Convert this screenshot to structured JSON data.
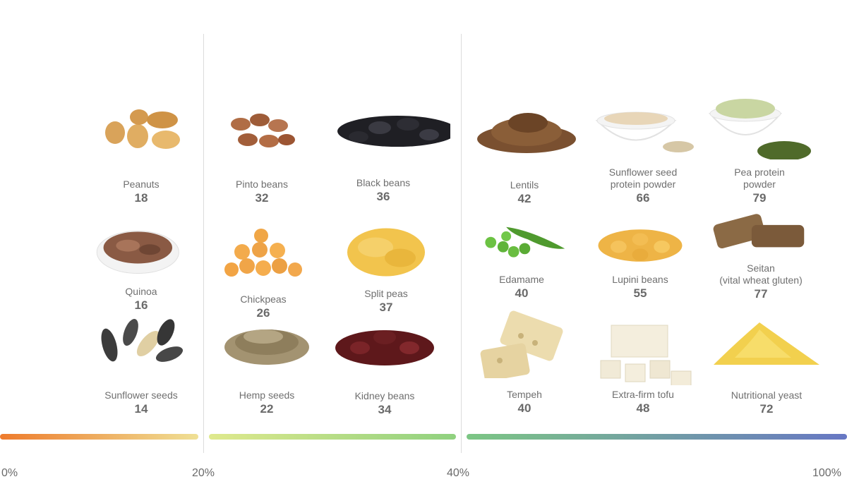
{
  "chart_data": {
    "type": "table",
    "title": "",
    "scale_ticks": [
      "0%",
      "20%",
      "40%",
      "100%"
    ],
    "scale_colors": {
      "band1": [
        "#ee7b2c",
        "#efe095"
      ],
      "band2": [
        "#dfe98d",
        "#8fd17f"
      ],
      "band3": [
        "#7cc684",
        "#6777c4"
      ]
    },
    "items": [
      {
        "name": "Peanuts",
        "value": 18,
        "icon": "peanuts-icon",
        "color": "#d9a35a"
      },
      {
        "name": "Quinoa",
        "value": 16,
        "icon": "quinoa-icon",
        "color": "#8a5a44"
      },
      {
        "name": "Sunflower seeds",
        "value": 14,
        "icon": "sunflower-seeds-icon",
        "color": "#3f3f3f"
      },
      {
        "name": "Pinto beans",
        "value": 32,
        "icon": "pinto-beans-icon",
        "color": "#a9623d"
      },
      {
        "name": "Chickpeas",
        "value": 26,
        "icon": "chickpeas-icon",
        "color": "#f0a545"
      },
      {
        "name": "Hemp seeds",
        "value": 22,
        "icon": "hemp-seeds-icon",
        "color": "#8f7d5c"
      },
      {
        "name": "Black beans",
        "value": 36,
        "icon": "black-beans-icon",
        "color": "#1e1e22"
      },
      {
        "name": "Split peas",
        "value": 37,
        "icon": "split-peas-icon",
        "color": "#f1c24a"
      },
      {
        "name": "Kidney beans",
        "value": 34,
        "icon": "kidney-beans-icon",
        "color": "#6b1f22"
      },
      {
        "name": "Lentils",
        "value": 42,
        "icon": "lentils-icon",
        "color": "#7a5030"
      },
      {
        "name": "Edamame",
        "value": 40,
        "icon": "edamame-icon",
        "color": "#5fae3a"
      },
      {
        "name": "Tempeh",
        "value": 40,
        "icon": "tempeh-icon",
        "color": "#e6d3a1"
      },
      {
        "name": "Sunflower seed protein powder",
        "value": 66,
        "icon": "protein-powder-icon",
        "color": "#e8d6b8"
      },
      {
        "name": "Lupini beans",
        "value": 55,
        "icon": "lupini-beans-icon",
        "color": "#f0b84a"
      },
      {
        "name": "Extra-firm tofu",
        "value": 48,
        "icon": "tofu-icon",
        "color": "#f1ead7"
      },
      {
        "name": "Pea protein powder",
        "value": 79,
        "icon": "pea-protein-icon",
        "color": "#c9d6a2"
      },
      {
        "name": "Seitan (vital wheat gluten)",
        "value": 77,
        "icon": "seitan-icon",
        "color": "#8b6a45"
      },
      {
        "name": "Nutritional yeast",
        "value": 72,
        "icon": "nutritional-yeast-icon",
        "color": "#f2d04e"
      }
    ]
  },
  "labels": {
    "sunflower_protein": [
      "Sunflower seed",
      "protein powder"
    ],
    "pea_protein": [
      "Pea protein",
      "powder"
    ],
    "seitan": [
      "Seitan",
      "(vital wheat gluten)"
    ]
  }
}
